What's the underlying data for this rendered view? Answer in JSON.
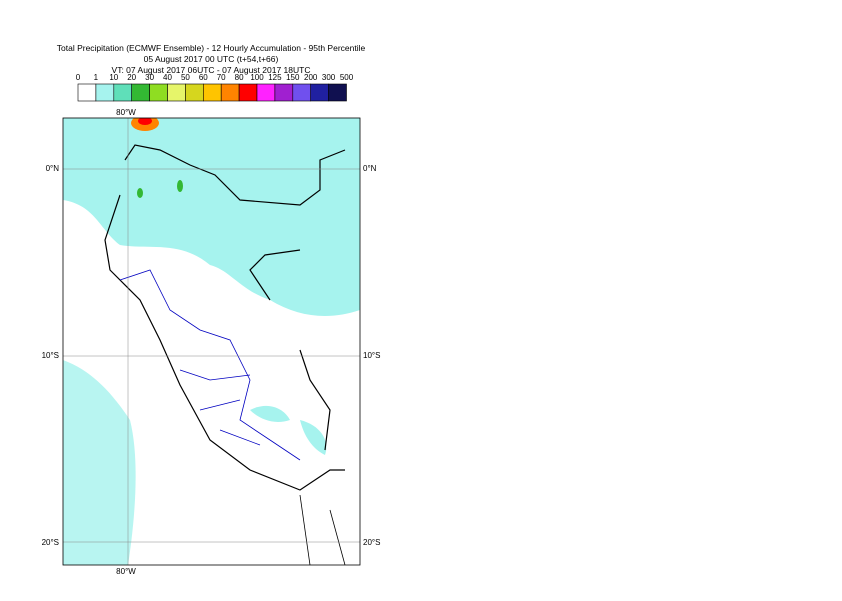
{
  "header": {
    "title_lines": [
      "Total Precipitation (ECMWF Ensemble) - 12 Hourly Accumulation - 95th Percentile",
      "05 August 2017 00 UTC (t+54,t+66)",
      "VT: 07 August 2017 06UTC - 07 August 2017 18UTC"
    ]
  },
  "legend": {
    "labels": [
      "0",
      "1",
      "10",
      "20",
      "30",
      "40",
      "50",
      "60",
      "70",
      "80",
      "100",
      "125",
      "150",
      "200",
      "300",
      "500"
    ],
    "colors": [
      "#ffffff",
      "#a6f3ee",
      "#5fdfb9",
      "#33b833",
      "#8fdd22",
      "#e6f56a",
      "#d6d61e",
      "#ffc400",
      "#ff8400",
      "#ff0000",
      "#ff22ff",
      "#a020d0",
      "#7050ee",
      "#2020a0",
      "#101050"
    ]
  },
  "map": {
    "lat_labels": [
      "0°N",
      "10°S",
      "20°S"
    ],
    "lon_label": "80°W"
  }
}
